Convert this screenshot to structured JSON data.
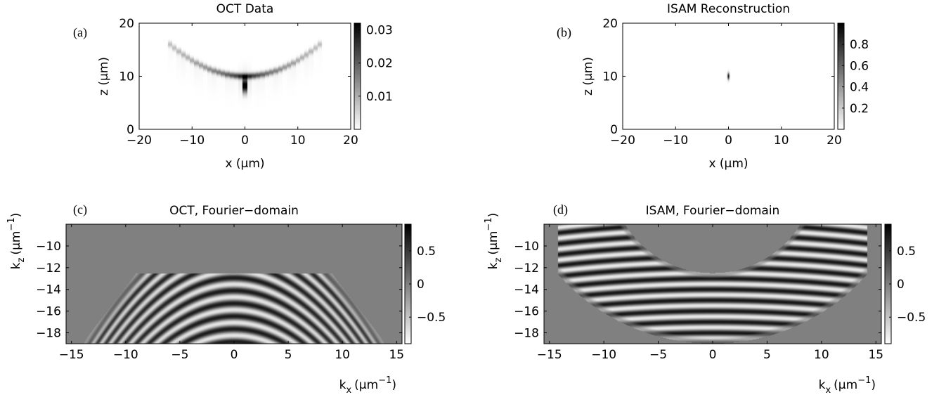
{
  "chart_data": [
    {
      "type": "heatmap",
      "panel_label": "(a)",
      "title": "OCT Data",
      "xlabel": "x (μm)",
      "ylabel": "z (μm)",
      "xlim": [
        -20,
        20
      ],
      "ylim": [
        0,
        20
      ],
      "x_ticks": [
        "−20",
        "−10",
        "0",
        "10",
        "20"
      ],
      "y_ticks": [
        "0",
        "10",
        "20"
      ],
      "colorbar": {
        "range": [
          0,
          0.032
        ],
        "ticks": [
          "0.01",
          "0.02",
          "0.03"
        ],
        "tick_values": [
          0.01,
          0.02,
          0.03
        ]
      },
      "colormap": "gray-reversed",
      "features": [
        {
          "kind": "arc",
          "description": "upward-curving wavefront",
          "vertex_x": 0,
          "vertex_z": 10,
          "extent_x": [
            -15,
            15
          ],
          "top_z": 17,
          "peak_value": 0.024
        },
        {
          "kind": "spike",
          "x": 0,
          "z_range": [
            6,
            10
          ],
          "peak_value": 0.032
        }
      ]
    },
    {
      "type": "heatmap",
      "panel_label": "(b)",
      "title": "ISAM Reconstruction",
      "xlabel": "x (μm)",
      "ylabel": "z (μm)",
      "xlim": [
        -20,
        20
      ],
      "ylim": [
        0,
        20
      ],
      "x_ticks": [
        "−20",
        "−10",
        "0",
        "10",
        "20"
      ],
      "y_ticks": [
        "0",
        "10",
        "20"
      ],
      "colorbar": {
        "range": [
          0,
          1
        ],
        "ticks": [
          "0.2",
          "0.4",
          "0.6",
          "0.8"
        ],
        "tick_values": [
          0.2,
          0.4,
          0.6,
          0.8
        ]
      },
      "colormap": "gray-reversed",
      "features": [
        {
          "kind": "point",
          "x": 0,
          "z": 10,
          "peak_value": 1.0
        }
      ]
    },
    {
      "type": "heatmap",
      "panel_label": "(c)",
      "title": "OCT, Fourier−domain",
      "xlabel": "k",
      "xlabel_sub": "x",
      "xlabel_unit": "(μm",
      "xlabel_exp": "−1",
      "ylabel": "k",
      "ylabel_sub": "z",
      "ylabel_unit": "(μm",
      "ylabel_exp": "−1",
      "xlim": [
        -15.5,
        15.5
      ],
      "ylim": [
        -19,
        -8
      ],
      "x_ticks": [
        "−15",
        "−10",
        "−5",
        "0",
        "5",
        "10",
        "15"
      ],
      "y_ticks": [
        "−18",
        "−16",
        "−14",
        "−12",
        "−10"
      ],
      "colorbar": {
        "range": [
          -0.9,
          0.9
        ],
        "ticks": [
          "−0.5",
          "0",
          "0.5"
        ],
        "tick_values": [
          -0.5,
          0,
          0.5
        ]
      },
      "colormap": "gray-reversed",
      "support": {
        "shape": "trapezoid",
        "top_kz": -12.5,
        "top_kx": [
          -9,
          9
        ],
        "bottom_kz": -19,
        "bottom_kx": [
          -14,
          14
        ]
      },
      "fringes": "arched, centred at kx = 0"
    },
    {
      "type": "heatmap",
      "panel_label": "(d)",
      "title": "ISAM, Fourier−domain",
      "xlabel": "k",
      "xlabel_sub": "x",
      "xlabel_unit": "(μm",
      "xlabel_exp": "−1",
      "ylabel": "k",
      "ylabel_sub": "z",
      "ylabel_unit": "(μm",
      "ylabel_exp": "−1",
      "xlim": [
        -15.5,
        15.5
      ],
      "ylim": [
        -19,
        -8
      ],
      "x_ticks": [
        "−15",
        "−10",
        "−5",
        "0",
        "5",
        "10",
        "15"
      ],
      "y_ticks": [
        "−18",
        "−16",
        "−14",
        "−12",
        "−10"
      ],
      "colorbar": {
        "range": [
          -0.9,
          0.9
        ],
        "ticks": [
          "−0.5",
          "0",
          "0.5"
        ],
        "tick_values": [
          -0.5,
          0,
          0.5
        ]
      },
      "colormap": "gray-reversed",
      "support": {
        "shape": "crescent",
        "lower_arc_center_kz": 0,
        "lower_arc_radius": 19,
        "upper_arc_center_kz": -3,
        "upper_arc_radius": 9.5,
        "kx_extent": [
          -14,
          14
        ]
      },
      "fringes": "near-horizontal, centred at kx = 0"
    }
  ]
}
